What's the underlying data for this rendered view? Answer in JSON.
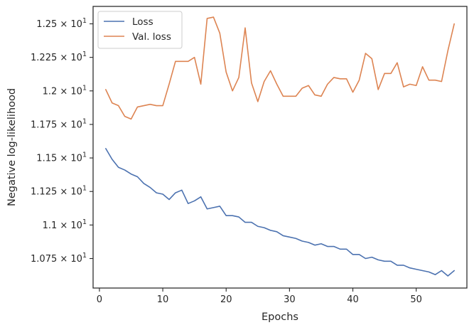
{
  "chart_data": {
    "type": "line",
    "xlabel": "Epochs",
    "ylabel": "Negative log-likelihood",
    "xlim": [
      -1,
      58
    ],
    "ylim": [
      10.53,
      12.63
    ],
    "xticks": [
      0,
      10,
      20,
      30,
      40,
      50
    ],
    "xtick_labels": [
      "0",
      "10",
      "20",
      "30",
      "40",
      "50"
    ],
    "yticks": [
      10.75,
      11.0,
      11.25,
      11.5,
      11.75,
      12.0,
      12.25,
      12.5
    ],
    "ytick_labels": [
      {
        "mantissa": "1.075",
        "base": "10",
        "exp": "1"
      },
      {
        "mantissa": "1.1",
        "base": "10",
        "exp": "1"
      },
      {
        "mantissa": "1.125",
        "base": "10",
        "exp": "1"
      },
      {
        "mantissa": "1.15",
        "base": "10",
        "exp": "1"
      },
      {
        "mantissa": "1.175",
        "base": "10",
        "exp": "1"
      },
      {
        "mantissa": "1.2",
        "base": "10",
        "exp": "1"
      },
      {
        "mantissa": "1.225",
        "base": "10",
        "exp": "1"
      },
      {
        "mantissa": "1.25",
        "base": "10",
        "exp": "1"
      }
    ],
    "grid": false,
    "legend_position": "top-left",
    "x": [
      1,
      2,
      3,
      4,
      5,
      6,
      7,
      8,
      9,
      10,
      11,
      12,
      13,
      14,
      15,
      16,
      17,
      18,
      19,
      20,
      21,
      22,
      23,
      24,
      25,
      26,
      27,
      28,
      29,
      30,
      31,
      32,
      33,
      34,
      35,
      36,
      37,
      38,
      39,
      40,
      41,
      42,
      43,
      44,
      45,
      46,
      47,
      48,
      49,
      50,
      51,
      52,
      53,
      54,
      55,
      56
    ],
    "series": [
      {
        "name": "Loss",
        "color": "#4c72b0",
        "values": [
          11.57,
          11.49,
          11.43,
          11.41,
          11.38,
          11.36,
          11.31,
          11.28,
          11.24,
          11.23,
          11.19,
          11.24,
          11.26,
          11.16,
          11.18,
          11.21,
          11.12,
          11.13,
          11.14,
          11.07,
          11.07,
          11.06,
          11.02,
          11.02,
          10.99,
          10.98,
          10.96,
          10.95,
          10.92,
          10.91,
          10.9,
          10.88,
          10.87,
          10.85,
          10.86,
          10.84,
          10.84,
          10.82,
          10.82,
          10.78,
          10.78,
          10.75,
          10.76,
          10.74,
          10.73,
          10.73,
          10.7,
          10.7,
          10.68,
          10.67,
          10.66,
          10.65,
          10.63,
          10.66,
          10.62,
          10.66
        ]
      },
      {
        "name": "Val. loss",
        "color": "#dd8452",
        "values": [
          12.01,
          11.91,
          11.89,
          11.81,
          11.79,
          11.88,
          11.89,
          11.9,
          11.89,
          11.89,
          12.05,
          12.22,
          12.22,
          12.22,
          12.25,
          12.05,
          12.54,
          12.55,
          12.43,
          12.14,
          12.0,
          12.1,
          12.47,
          12.06,
          11.92,
          12.07,
          12.15,
          12.05,
          11.96,
          11.96,
          11.96,
          12.02,
          12.04,
          11.97,
          11.96,
          12.05,
          12.1,
          12.09,
          12.09,
          11.99,
          12.08,
          12.28,
          12.24,
          12.01,
          12.13,
          12.13,
          12.21,
          12.03,
          12.05,
          12.04,
          12.18,
          12.08,
          12.08,
          12.07,
          12.3,
          12.5
        ]
      }
    ]
  }
}
